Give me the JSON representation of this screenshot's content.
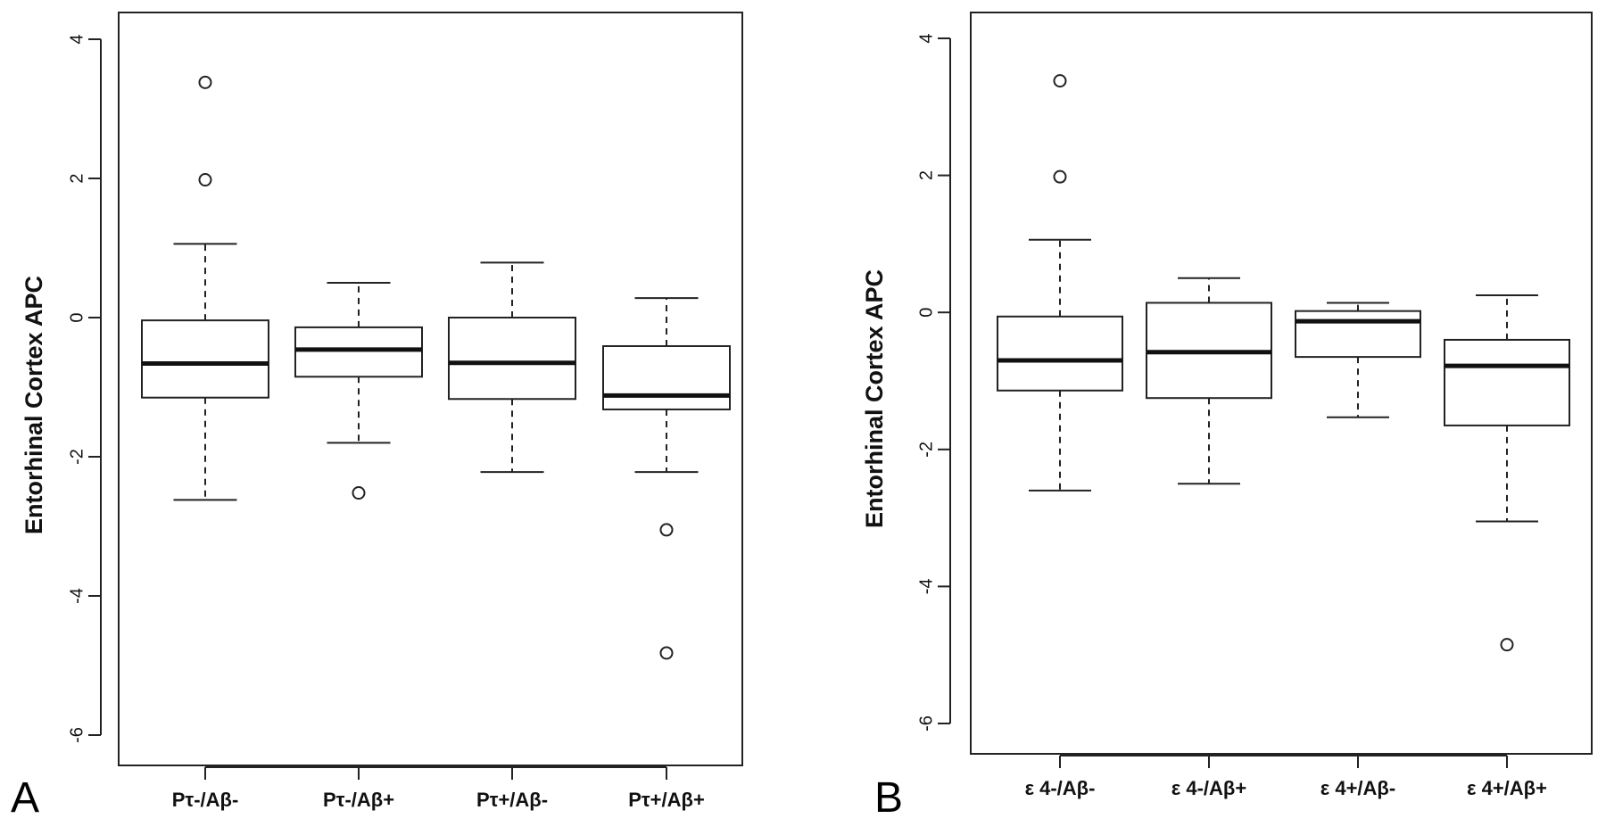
{
  "chart_data": [
    {
      "type": "box",
      "panel_label": "A",
      "ylabel": "Entorhinal Cortex APC",
      "ylim": [
        -6.4,
        4.4
      ],
      "yticks": [
        4,
        2,
        0,
        -2,
        -4,
        -6
      ],
      "ytick_labels": [
        "4",
        "2",
        "0",
        "-2",
        "-4",
        "-6"
      ],
      "categories": [
        "Pτ-/Aβ-",
        "Pτ-/Aβ+",
        "Pτ+/Aβ-",
        "Pτ+/Aβ+"
      ],
      "boxes": [
        {
          "whisker_low": -2.62,
          "q1": -1.15,
          "median": -0.66,
          "q3": -0.04,
          "whisker_high": 1.06,
          "outliers": [
            3.38,
            1.98
          ]
        },
        {
          "whisker_low": -1.8,
          "q1": -0.85,
          "median": -0.46,
          "q3": -0.14,
          "whisker_high": 0.5,
          "outliers": [
            -2.52
          ]
        },
        {
          "whisker_low": -2.22,
          "q1": -1.17,
          "median": -0.65,
          "q3": 0.0,
          "whisker_high": 0.79,
          "outliers": []
        },
        {
          "whisker_low": -2.22,
          "q1": -1.32,
          "median": -1.12,
          "q3": -0.41,
          "whisker_high": 0.28,
          "outliers": [
            -3.05,
            -4.82
          ]
        }
      ]
    },
    {
      "type": "box",
      "panel_label": "B",
      "ylabel": "Entorhinal Cortex APC",
      "ylim": [
        -6.4,
        4.4
      ],
      "yticks": [
        4,
        2,
        0,
        -2,
        -4,
        -6
      ],
      "ytick_labels": [
        "4",
        "2",
        "0",
        "-2",
        "-4",
        "-6"
      ],
      "categories": [
        "ε 4-/Aβ-",
        "ε 4-/Aβ+",
        "ε 4+/Aβ-",
        "ε 4+/Aβ+"
      ],
      "boxes": [
        {
          "whisker_low": -2.6,
          "q1": -1.14,
          "median": -0.7,
          "q3": -0.06,
          "whisker_high": 1.06,
          "outliers": [
            3.38,
            1.98
          ]
        },
        {
          "whisker_low": -2.5,
          "q1": -1.25,
          "median": -0.58,
          "q3": 0.14,
          "whisker_high": 0.5,
          "outliers": []
        },
        {
          "whisker_low": -1.53,
          "q1": -0.65,
          "median": -0.13,
          "q3": 0.02,
          "whisker_high": 0.14,
          "outliers": []
        },
        {
          "whisker_low": -3.05,
          "q1": -1.65,
          "median": -0.78,
          "q3": -0.4,
          "whisker_high": 0.25,
          "outliers": [
            -4.85
          ]
        }
      ]
    }
  ]
}
